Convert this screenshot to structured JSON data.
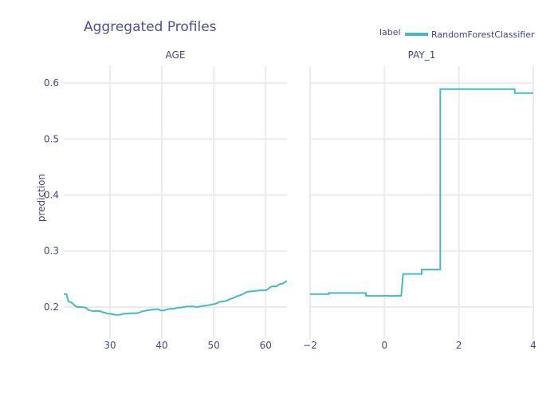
{
  "chart_data": {
    "type": "line",
    "title": "Aggregated Profiles",
    "ylabel": "prediction",
    "ylim": [
      0.143,
      0.63
    ],
    "yticks": [
      0.2,
      0.3,
      0.4,
      0.5,
      0.6
    ],
    "ytick_labels": [
      "0.2",
      "0.3",
      "0.4",
      "0.5",
      "0.6"
    ],
    "legend": {
      "title": "label",
      "position": "top-right",
      "entries": [
        {
          "name": "RandomForestClassifier",
          "color": "#46bac2"
        }
      ]
    },
    "series_color": "#46bac2",
    "panels": [
      {
        "name": "AGE",
        "xlim": [
          21.1,
          64.1
        ],
        "xticks": [
          30,
          40,
          50,
          60
        ],
        "xtick_labels": [
          "30",
          "40",
          "50",
          "60"
        ],
        "series": [
          {
            "name": "RandomForestClassifier",
            "x": [
              21.1,
              21.6,
              22.0,
              22.6,
              23.2,
              23.7,
              24.5,
              25.3,
              26.0,
              26.7,
              28.0,
              28.5,
              29.0,
              29.6,
              30.0,
              30.6,
              31.1,
              31.7,
              32.3,
              32.6,
              33.2,
              34.0,
              34.6,
              35.1,
              35.6,
              36.1,
              36.6,
              37.1,
              38.0,
              38.6,
              39.3,
              39.8,
              40.4,
              41.0,
              41.6,
              42.3,
              43.0,
              43.6,
              44.2,
              44.8,
              45.3,
              46.2,
              46.7,
              47.3,
              48.0,
              48.7,
              49.3,
              49.9,
              50.4,
              51.0,
              51.7,
              52.4,
              53.1,
              53.8,
              54.4,
              55.1,
              55.8,
              56.3,
              57.3,
              58.2,
              59.1,
              60.1,
              61.0,
              61.5,
              62.1,
              62.7,
              63.3,
              64.1
            ],
            "y": [
              0.223,
              0.223,
              0.21,
              0.208,
              0.203,
              0.2,
              0.2,
              0.199,
              0.194,
              0.193,
              0.193,
              0.191,
              0.19,
              0.188,
              0.188,
              0.187,
              0.186,
              0.186,
              0.187,
              0.188,
              0.188,
              0.189,
              0.189,
              0.189,
              0.19,
              0.192,
              0.193,
              0.194,
              0.195,
              0.196,
              0.196,
              0.194,
              0.194,
              0.196,
              0.197,
              0.197,
              0.199,
              0.199,
              0.2,
              0.201,
              0.201,
              0.201,
              0.2,
              0.201,
              0.202,
              0.203,
              0.204,
              0.205,
              0.206,
              0.209,
              0.21,
              0.211,
              0.214,
              0.216,
              0.219,
              0.221,
              0.224,
              0.227,
              0.228,
              0.229,
              0.23,
              0.23,
              0.236,
              0.237,
              0.237,
              0.241,
              0.242,
              0.247
            ]
          }
        ]
      },
      {
        "name": "PAY_1",
        "xlim": [
          -2,
          4
        ],
        "xticks": [
          -2,
          0,
          2,
          4
        ],
        "xtick_labels": [
          "−2",
          "0",
          "2",
          "4"
        ],
        "series": [
          {
            "name": "RandomForestClassifier",
            "x": [
              -2.0,
              -1.5,
              -1.5,
              -0.5,
              -0.5,
              0.45,
              0.5,
              1.0,
              1.0,
              1.5,
              1.5,
              1.55,
              3.5,
              3.5,
              4.0
            ],
            "y": [
              0.223,
              0.223,
              0.225,
              0.225,
              0.22,
              0.22,
              0.259,
              0.259,
              0.267,
              0.267,
              0.589,
              0.589,
              0.589,
              0.582,
              0.582
            ]
          }
        ]
      }
    ]
  }
}
